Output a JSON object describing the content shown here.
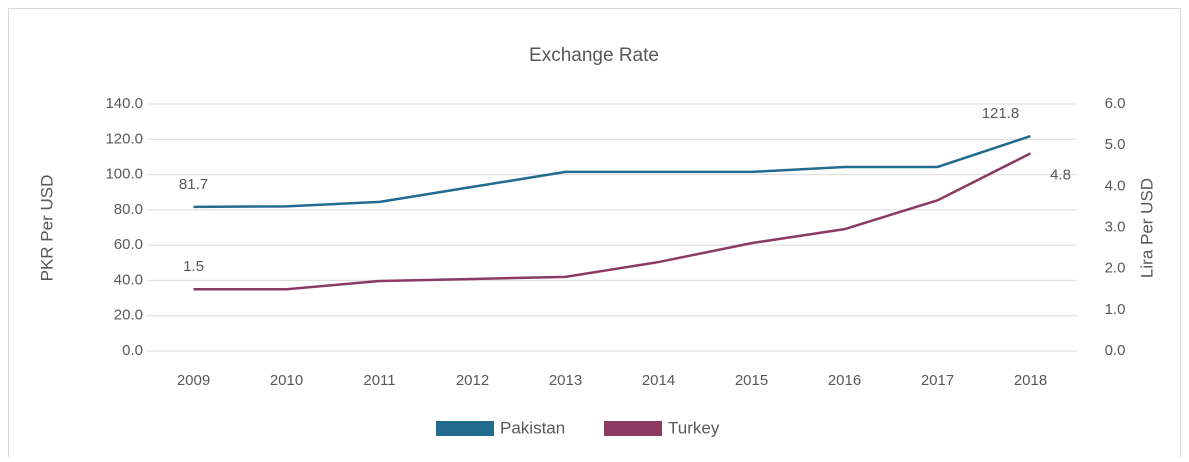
{
  "chart_data": {
    "type": "line",
    "title": "Exchange Rate",
    "ylabel": "PKR Per USD",
    "y2label": "Lira Per USD",
    "categories": [
      "2009",
      "2010",
      "2011",
      "2012",
      "2013",
      "2014",
      "2015",
      "2016",
      "2017",
      "2018"
    ],
    "series": [
      {
        "name": "Pakistan",
        "color": "#236b8e",
        "values": [
          81.7,
          82,
          84.5,
          93,
          101.5,
          101.5,
          101.5,
          104.3,
          104.3,
          121.8
        ]
      },
      {
        "name": "Turkey",
        "color": "#8b3a62",
        "axis": "y2",
        "values": [
          1.5,
          1.5,
          1.7,
          1.75,
          1.8,
          2.16,
          2.62,
          2.96,
          3.66,
          4.8
        ]
      }
    ],
    "ylim": [
      0,
      140
    ],
    "yticks": [
      {
        "value": 0,
        "label": "0.0"
      },
      {
        "value": 20,
        "label": "20.0"
      },
      {
        "value": 40,
        "label": "40.0"
      },
      {
        "value": 60,
        "label": "60.0"
      },
      {
        "value": 80,
        "label": "80.0"
      },
      {
        "value": 100,
        "label": "100.0"
      },
      {
        "value": 120,
        "label": "120.0"
      },
      {
        "value": 140,
        "label": "140.0"
      }
    ],
    "y2lim": [
      0,
      6
    ],
    "y2ticks": [
      {
        "value": 0,
        "label": "0.0"
      },
      {
        "value": 1,
        "label": "1.0"
      },
      {
        "value": 2,
        "label": "2.0"
      },
      {
        "value": 3,
        "label": "3.0"
      },
      {
        "value": 4,
        "label": "4.0"
      },
      {
        "value": 5,
        "label": "5.0"
      },
      {
        "value": 6,
        "label": "6.0"
      }
    ],
    "grid": true,
    "legend": "bottom"
  }
}
